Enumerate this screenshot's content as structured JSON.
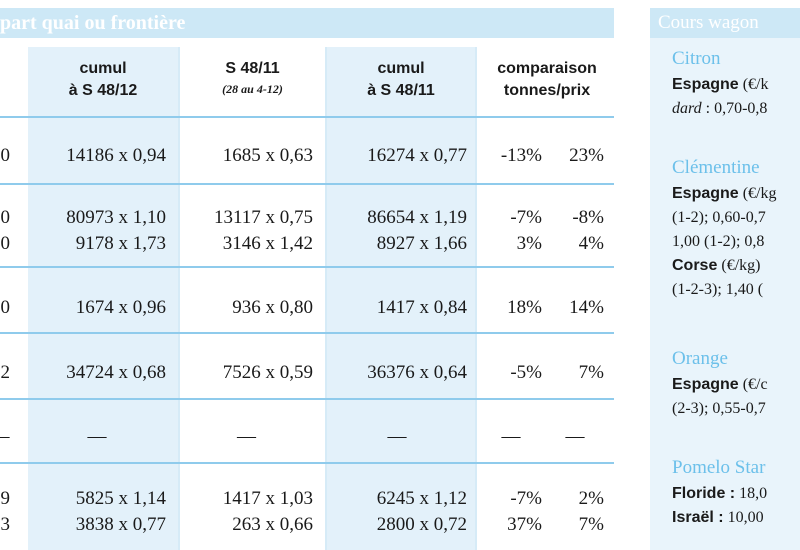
{
  "left_panel": {
    "title": "part quai ou frontière",
    "headers": {
      "cumul_48_12": {
        "line1": "cumul",
        "line2": "à S 48/12"
      },
      "s_48_11": {
        "line1": "S 48/11",
        "sub": "(28 au 4-12)"
      },
      "cumul_48_11": {
        "line1": "cumul",
        "line2": "à S 48/11"
      },
      "comparaison": {
        "line1": "comparaison",
        "line2": "tonnes/prix"
      }
    },
    "rows": [
      {
        "edge": "0",
        "cumul12": "14186 x 0,94",
        "s4811": "1685 x 0,63",
        "cumul11": "16274 x 0,77",
        "tonnes": "-13%",
        "prix": "23%"
      },
      {
        "edge": "0",
        "cumul12": "80973 x 1,10",
        "s4811": "13117 x 0,75",
        "cumul11": "86654 x 1,19",
        "tonnes": "-7%",
        "prix": "-8%"
      },
      {
        "edge": "0",
        "cumul12": "9178 x 1,73",
        "s4811": "3146 x 1,42",
        "cumul11": "8927 x 1,66",
        "tonnes": "3%",
        "prix": "4%"
      },
      {
        "edge": "0",
        "cumul12": "1674 x 0,96",
        "s4811": "936 x 0,80",
        "cumul11": "1417 x 0,84",
        "tonnes": "18%",
        "prix": "14%"
      },
      {
        "edge": "2",
        "cumul12": "34724 x 0,68",
        "s4811": "7526 x 0,59",
        "cumul11": "36376 x 0,64",
        "tonnes": "-5%",
        "prix": "7%"
      },
      {
        "edge": "—",
        "cumul12": "—",
        "s4811": "—",
        "cumul11": "—",
        "tonnes": "—",
        "prix": "—"
      },
      {
        "edge": "9",
        "cumul12": "5825 x 1,14",
        "s4811": "1417 x 1,03",
        "cumul11": "6245 x 1,12",
        "tonnes": "-7%",
        "prix": "2%"
      },
      {
        "edge": "3",
        "cumul12": "3838 x 0,77",
        "s4811": "263 x 0,66",
        "cumul11": "2800 x 0,72",
        "tonnes": "37%",
        "prix": "7%"
      }
    ]
  },
  "right_panel": {
    "title": "Cours wagon",
    "sections": [
      {
        "category": "Citron",
        "lines": [
          {
            "bold": "Espagne",
            "text": " (€/k"
          },
          {
            "italic": "dard",
            "text": " : 0,70-0,8"
          }
        ]
      },
      {
        "category": "Clémentine",
        "lines": [
          {
            "bold": "Espagne",
            "text": " (€/kg"
          },
          {
            "bold": "",
            "text": "(1-2); 0,60-0,7"
          },
          {
            "bold": "",
            "text": "1,00 (1-2); 0,8"
          },
          {
            "bold": "Corse",
            "text": " (€/kg)"
          },
          {
            "bold": "",
            "text": "(1-2-3); 1,40 ("
          }
        ]
      },
      {
        "category": "Orange",
        "lines": [
          {
            "bold": "Espagne",
            "text": " (€/c"
          },
          {
            "bold": "",
            "text": "(2-3); 0,55-0,7"
          }
        ]
      },
      {
        "category": "Pomelo Star",
        "lines": [
          {
            "bold": "Floride :",
            "text": " 18,0"
          },
          {
            "bold": "Israël :",
            "text": " 10,00"
          }
        ]
      }
    ]
  }
}
